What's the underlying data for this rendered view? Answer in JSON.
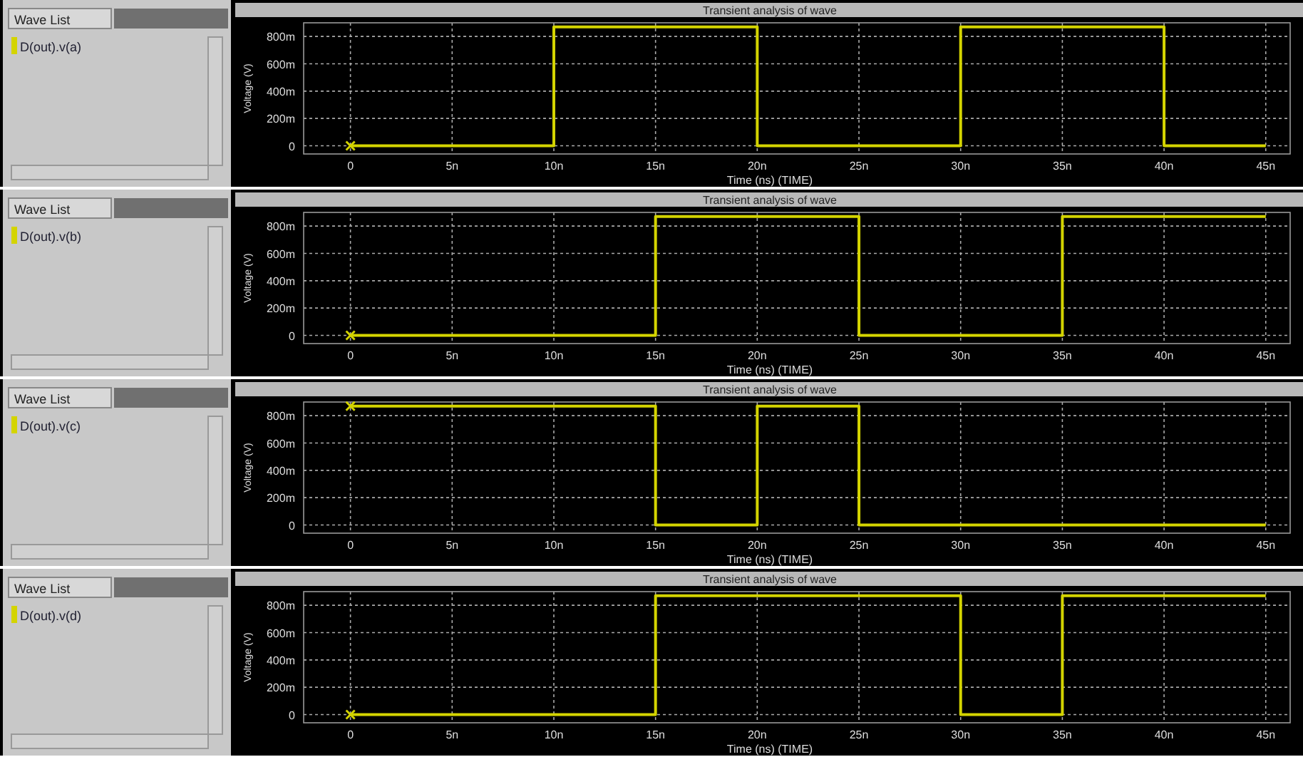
{
  "chart_data": [
    {
      "type": "step",
      "title": "Transient analysis of wave",
      "xlabel": "Time (ns) (TIME)",
      "ylabel": "Voltage (V)",
      "annotations": [
        "Wave List"
      ],
      "x": [
        0,
        10,
        20,
        30,
        40,
        45
      ],
      "series": [
        {
          "name": "D(out).v(a)",
          "color": "#d4d400",
          "values": [
            0,
            870,
            0,
            870,
            0,
            0
          ]
        }
      ],
      "xlim": [
        -2.3,
        46.2
      ],
      "ylim": [
        -60,
        900
      ],
      "xticks": [
        {
          "value": 0,
          "label": "0"
        },
        {
          "value": 5,
          "label": "5n"
        },
        {
          "value": 10,
          "label": "10n"
        },
        {
          "value": 15,
          "label": "15n"
        },
        {
          "value": 20,
          "label": "20n"
        },
        {
          "value": 25,
          "label": "25n"
        },
        {
          "value": 30,
          "label": "30n"
        },
        {
          "value": 35,
          "label": "35n"
        },
        {
          "value": 40,
          "label": "40n"
        },
        {
          "value": 45,
          "label": "45n"
        }
      ],
      "yticks": [
        {
          "value": 0,
          "label": "0"
        },
        {
          "value": 200,
          "label": "200m"
        },
        {
          "value": 400,
          "label": "400m"
        },
        {
          "value": 600,
          "label": "600m"
        },
        {
          "value": 800,
          "label": "800m"
        }
      ],
      "grid": true,
      "legend": "left"
    },
    {
      "type": "step",
      "title": "Transient analysis of wave",
      "xlabel": "Time (ns) (TIME)",
      "ylabel": "Voltage (V)",
      "annotations": [
        "Wave List"
      ],
      "x": [
        0,
        15,
        25,
        35,
        45
      ],
      "series": [
        {
          "name": "D(out).v(b)",
          "color": "#d4d400",
          "values": [
            0,
            870,
            0,
            870,
            870
          ]
        }
      ],
      "xlim": [
        -2.3,
        46.2
      ],
      "ylim": [
        -60,
        900
      ],
      "xticks": [
        {
          "value": 0,
          "label": "0"
        },
        {
          "value": 5,
          "label": "5n"
        },
        {
          "value": 10,
          "label": "10n"
        },
        {
          "value": 15,
          "label": "15n"
        },
        {
          "value": 20,
          "label": "20n"
        },
        {
          "value": 25,
          "label": "25n"
        },
        {
          "value": 30,
          "label": "30n"
        },
        {
          "value": 35,
          "label": "35n"
        },
        {
          "value": 40,
          "label": "40n"
        },
        {
          "value": 45,
          "label": "45n"
        }
      ],
      "yticks": [
        {
          "value": 0,
          "label": "0"
        },
        {
          "value": 200,
          "label": "200m"
        },
        {
          "value": 400,
          "label": "400m"
        },
        {
          "value": 600,
          "label": "600m"
        },
        {
          "value": 800,
          "label": "800m"
        }
      ],
      "grid": true,
      "legend": "left"
    },
    {
      "type": "step",
      "title": "Transient analysis of wave",
      "xlabel": "Time (ns) (TIME)",
      "ylabel": "Voltage (V)",
      "annotations": [
        "Wave List"
      ],
      "x": [
        0,
        15,
        20,
        25,
        45
      ],
      "series": [
        {
          "name": "D(out).v(c)",
          "color": "#d4d400",
          "values": [
            870,
            0,
            870,
            0,
            0
          ]
        }
      ],
      "xlim": [
        -2.3,
        46.2
      ],
      "ylim": [
        -60,
        900
      ],
      "xticks": [
        {
          "value": 0,
          "label": "0"
        },
        {
          "value": 5,
          "label": "5n"
        },
        {
          "value": 10,
          "label": "10n"
        },
        {
          "value": 15,
          "label": "15n"
        },
        {
          "value": 20,
          "label": "20n"
        },
        {
          "value": 25,
          "label": "25n"
        },
        {
          "value": 30,
          "label": "30n"
        },
        {
          "value": 35,
          "label": "35n"
        },
        {
          "value": 40,
          "label": "40n"
        },
        {
          "value": 45,
          "label": "45n"
        }
      ],
      "yticks": [
        {
          "value": 0,
          "label": "0"
        },
        {
          "value": 200,
          "label": "200m"
        },
        {
          "value": 400,
          "label": "400m"
        },
        {
          "value": 600,
          "label": "600m"
        },
        {
          "value": 800,
          "label": "800m"
        }
      ],
      "grid": true,
      "legend": "left"
    },
    {
      "type": "step",
      "title": "Transient analysis of wave",
      "xlabel": "Time (ns) (TIME)",
      "ylabel": "Voltage (V)",
      "annotations": [
        "Wave List"
      ],
      "x": [
        0,
        15,
        30,
        35,
        45
      ],
      "series": [
        {
          "name": "D(out).v(d)",
          "color": "#d4d400",
          "values": [
            0,
            870,
            0,
            870,
            870
          ]
        }
      ],
      "xlim": [
        -2.3,
        46.2
      ],
      "ylim": [
        -60,
        900
      ],
      "xticks": [
        {
          "value": 0,
          "label": "0"
        },
        {
          "value": 5,
          "label": "5n"
        },
        {
          "value": 10,
          "label": "10n"
        },
        {
          "value": 15,
          "label": "15n"
        },
        {
          "value": 20,
          "label": "20n"
        },
        {
          "value": 25,
          "label": "25n"
        },
        {
          "value": 30,
          "label": "30n"
        },
        {
          "value": 35,
          "label": "35n"
        },
        {
          "value": 40,
          "label": "40n"
        },
        {
          "value": 45,
          "label": "45n"
        }
      ],
      "yticks": [
        {
          "value": 0,
          "label": "0"
        },
        {
          "value": 200,
          "label": "200m"
        },
        {
          "value": 400,
          "label": "400m"
        },
        {
          "value": 600,
          "label": "600m"
        },
        {
          "value": 800,
          "label": "800m"
        }
      ],
      "grid": true,
      "legend": "left"
    }
  ]
}
